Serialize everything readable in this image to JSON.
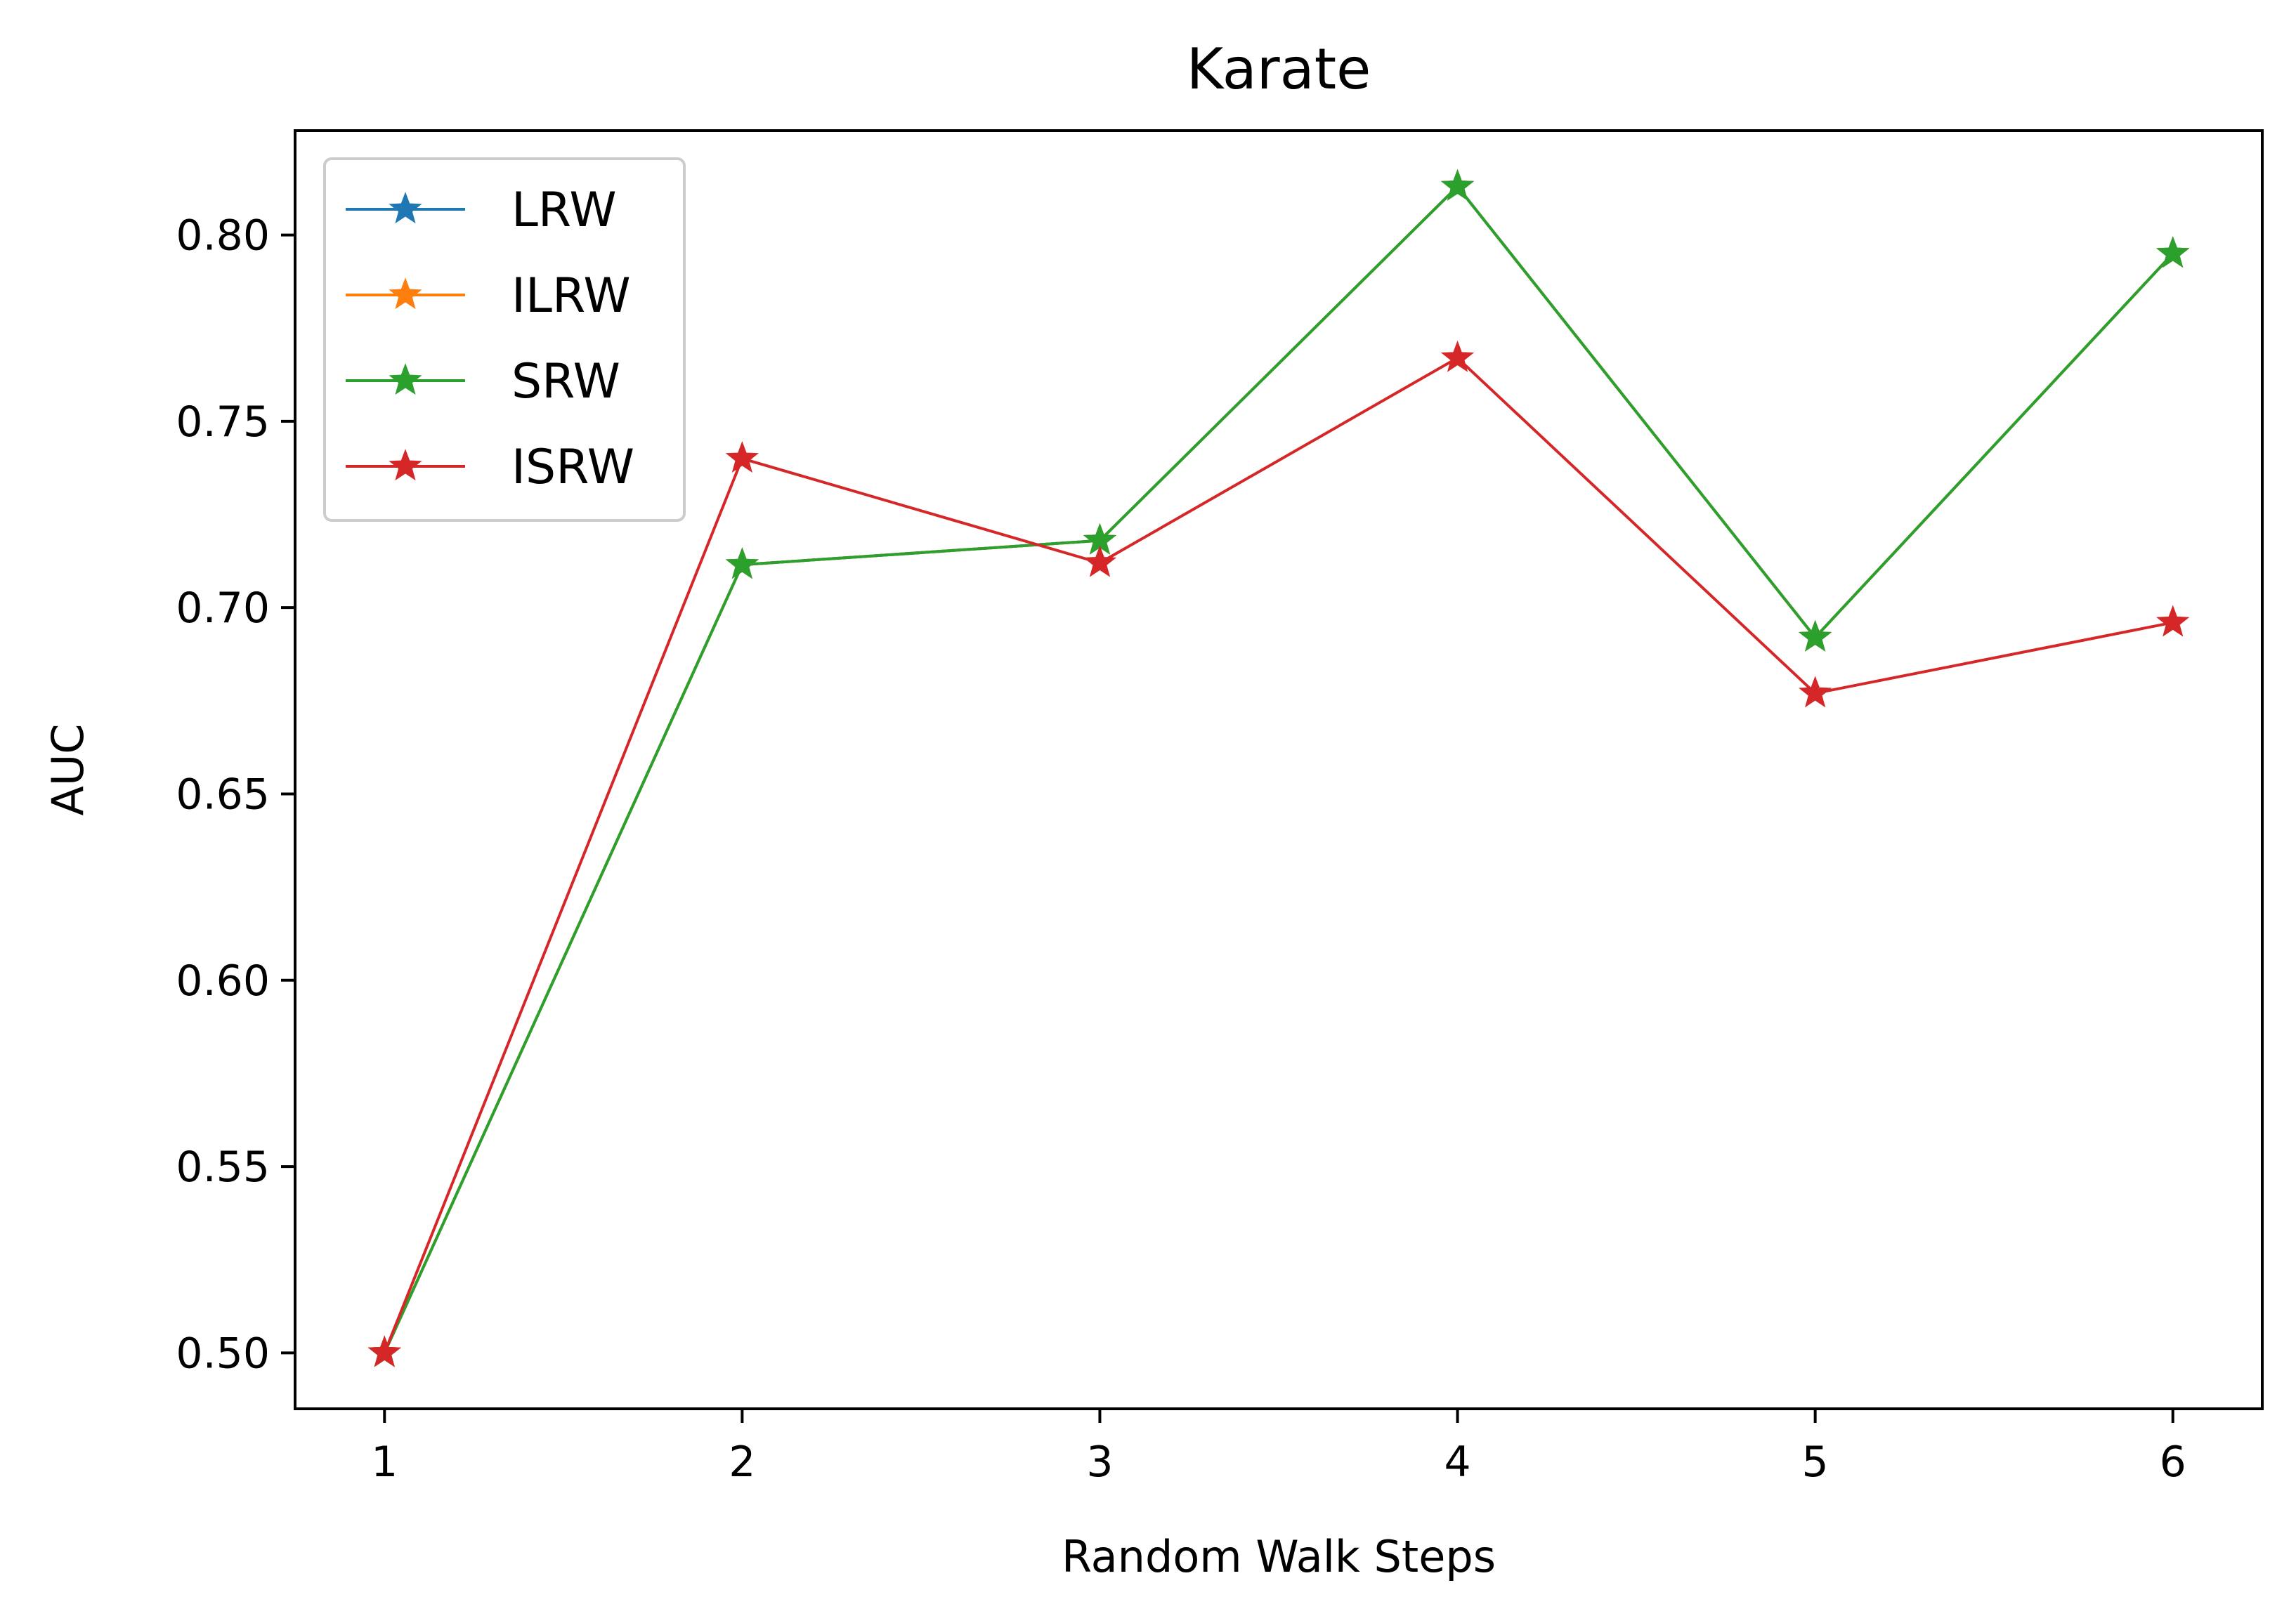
{
  "chart_data": {
    "type": "line",
    "title": "Karate",
    "xlabel": "Random Walk Steps",
    "ylabel": "AUC",
    "x": [
      1,
      2,
      3,
      4,
      5,
      6
    ],
    "xlim": [
      0.75,
      6.25
    ],
    "ylim": [
      0.485,
      0.828
    ],
    "xticks": [
      1,
      2,
      3,
      4,
      5,
      6
    ],
    "yticks": [
      0.5,
      0.55,
      0.6,
      0.65,
      0.7,
      0.75,
      0.8
    ],
    "ytick_labels": [
      "0.50",
      "0.55",
      "0.60",
      "0.65",
      "0.70",
      "0.75",
      "0.80"
    ],
    "grid": false,
    "legend_position": "upper-left",
    "marker": "star",
    "series": [
      {
        "name": "LRW",
        "color": "#1f77b4",
        "values": [
          0.5,
          0.7115,
          0.718,
          0.813,
          0.692,
          0.795
        ]
      },
      {
        "name": "ILRW",
        "color": "#ff7f0e",
        "values": [
          0.5,
          0.7115,
          0.718,
          0.813,
          0.692,
          0.795
        ]
      },
      {
        "name": "SRW",
        "color": "#2ca02c",
        "values": [
          0.5,
          0.7115,
          0.718,
          0.813,
          0.692,
          0.795
        ]
      },
      {
        "name": "ISRW",
        "color": "#d62728",
        "values": [
          0.5,
          0.74,
          0.712,
          0.767,
          0.677,
          0.696
        ]
      }
    ]
  }
}
